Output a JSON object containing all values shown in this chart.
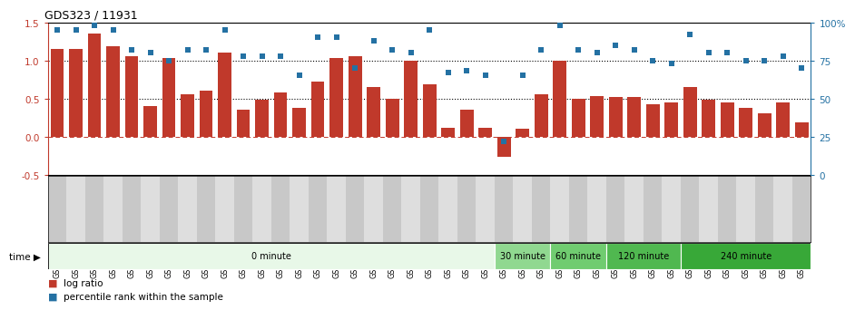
{
  "title": "GDS323 / 11931",
  "samples": [
    "GSM5811",
    "GSM5812",
    "GSM5813",
    "GSM5814",
    "GSM5815",
    "GSM5816",
    "GSM5817",
    "GSM5818",
    "GSM5819",
    "GSM5820",
    "GSM5821",
    "GSM5822",
    "GSM5823",
    "GSM5824",
    "GSM5825",
    "GSM5826",
    "GSM5827",
    "GSM5828",
    "GSM5829",
    "GSM5830",
    "GSM5831",
    "GSM5832",
    "GSM5833",
    "GSM5834",
    "GSM5835",
    "GSM5836",
    "GSM5837",
    "GSM5838",
    "GSM5839",
    "GSM5840",
    "GSM5841",
    "GSM5842",
    "GSM5843",
    "GSM5844",
    "GSM5845",
    "GSM5846",
    "GSM5847",
    "GSM5848",
    "GSM5849",
    "GSM5850",
    "GSM5851"
  ],
  "log_ratio": [
    1.15,
    1.15,
    1.35,
    1.18,
    1.05,
    0.4,
    1.03,
    0.55,
    0.6,
    1.1,
    0.35,
    0.48,
    0.58,
    0.38,
    0.72,
    1.03,
    1.05,
    0.65,
    0.5,
    1.0,
    0.68,
    0.12,
    0.35,
    0.12,
    -0.27,
    0.1,
    0.55,
    1.0,
    0.5,
    0.53,
    0.52,
    0.52,
    0.42,
    0.45,
    0.65,
    0.48,
    0.45,
    0.38,
    0.3,
    0.45,
    0.18
  ],
  "percentile": [
    95,
    95,
    98,
    95,
    82,
    80,
    75,
    82,
    82,
    95,
    78,
    78,
    78,
    65,
    90,
    90,
    70,
    88,
    82,
    80,
    95,
    67,
    68,
    65,
    22,
    65,
    82,
    98,
    82,
    80,
    85,
    82,
    75,
    73,
    92,
    80,
    80,
    75,
    75,
    78,
    70
  ],
  "bar_color": "#c0392b",
  "dot_color": "#2471a3",
  "ylim_left": [
    -0.5,
    1.5
  ],
  "ylim_right": [
    0,
    100
  ],
  "yticks_left": [
    -0.5,
    0.0,
    0.5,
    1.0,
    1.5
  ],
  "yticks_right": [
    0,
    25,
    50,
    75,
    100
  ],
  "ytick_labels_right": [
    "0",
    "25",
    "50",
    "75",
    "100%"
  ],
  "dotted_lines": [
    0.5,
    1.0
  ],
  "time_groups": [
    {
      "label": "0 minute",
      "start": 0,
      "end": 24,
      "color": "#e8f8e8"
    },
    {
      "label": "30 minute",
      "start": 24,
      "end": 27,
      "color": "#90d890"
    },
    {
      "label": "60 minute",
      "start": 27,
      "end": 30,
      "color": "#70cc70"
    },
    {
      "label": "120 minute",
      "start": 30,
      "end": 34,
      "color": "#50b850"
    },
    {
      "label": "240 minute",
      "start": 34,
      "end": 41,
      "color": "#38a838"
    }
  ],
  "legend_bar_label": "log ratio",
  "legend_dot_label": "percentile rank within the sample",
  "time_label": "time"
}
